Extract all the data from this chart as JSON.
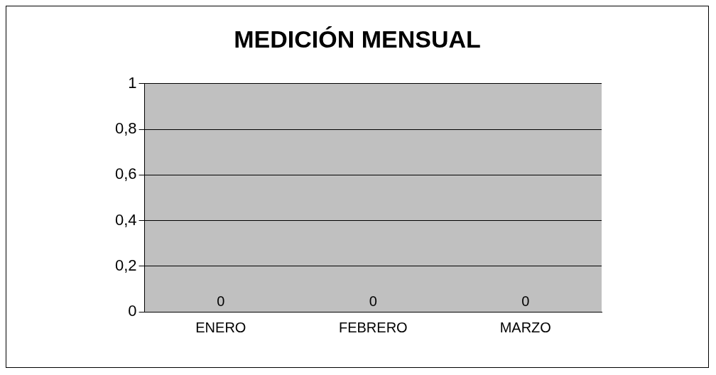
{
  "chart_data": {
    "type": "bar",
    "title": "MEDICIÓN MENSUAL",
    "categories": [
      "ENERO",
      "FEBRERO",
      "MARZO"
    ],
    "values": [
      0,
      0,
      0
    ],
    "ylim": [
      0,
      1
    ],
    "yticks": [
      0,
      {
        "value": 0.2,
        "label": "0,2"
      },
      {
        "value": 0.4,
        "label": "0,4"
      },
      {
        "value": 0.6,
        "label": "0,6"
      },
      {
        "value": 0.8,
        "label": "0,8"
      },
      1
    ],
    "grid": "y",
    "data_labels": true,
    "legend": false
  }
}
